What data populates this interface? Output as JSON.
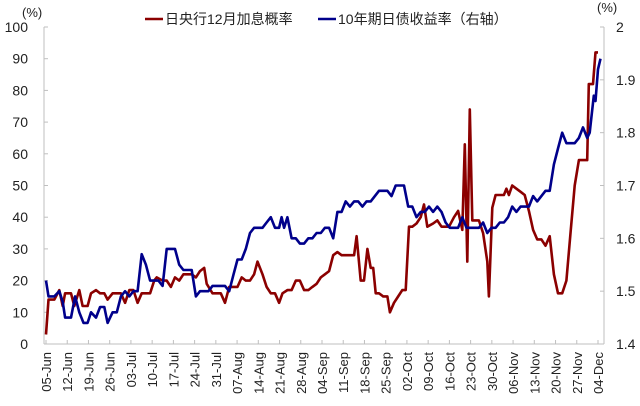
{
  "chart_data": {
    "type": "line",
    "title": "",
    "legend": [
      {
        "name": "日央行12月加息概率",
        "color": "#8B0000",
        "axis": "left"
      },
      {
        "name": "10年期日债收益率（右轴）",
        "color": "#00008B",
        "axis": "right"
      }
    ],
    "legend_position": "top",
    "left_axis": {
      "unit_label": "(%)",
      "ylim": [
        0,
        100
      ],
      "ticks": [
        0,
        10,
        20,
        30,
        40,
        50,
        60,
        70,
        80,
        90,
        100
      ]
    },
    "right_axis": {
      "unit_label": "(%)",
      "ylim": [
        1.4,
        2.0
      ],
      "ticks": [
        "1.4",
        "1.5",
        "1.6",
        "1.7",
        "1.8",
        "1.9",
        "2"
      ]
    },
    "x_tick_labels": [
      "05-Jun",
      "12-Jun",
      "19-Jun",
      "26-Jun",
      "03-Jul",
      "10-Jul",
      "17-Jul",
      "24-Jul",
      "31-Jul",
      "07-Aug",
      "14-Aug",
      "21-Aug",
      "28-Aug",
      "04-Sep",
      "11-Sep",
      "18-Sep",
      "25-Sep",
      "02-Oct",
      "09-Oct",
      "16-Oct",
      "23-Oct",
      "30-Oct",
      "06-Nov",
      "13-Nov",
      "20-Nov",
      "27-Nov",
      "04-Dec"
    ],
    "grid": false,
    "series": [
      {
        "name": "日央行12月加息概率",
        "axis": "left",
        "color": "#8B0000",
        "points": [
          [
            0,
            3
          ],
          [
            0.3,
            14
          ],
          [
            1,
            14
          ],
          [
            1.6,
            17
          ],
          [
            2,
            12
          ],
          [
            2.3,
            16
          ],
          [
            3,
            16
          ],
          [
            3.4,
            12
          ],
          [
            4,
            17
          ],
          [
            4.4,
            12
          ],
          [
            5,
            12
          ],
          [
            5.4,
            16
          ],
          [
            6,
            17
          ],
          [
            6.5,
            16
          ],
          [
            7,
            16
          ],
          [
            7.4,
            14
          ],
          [
            8,
            16
          ],
          [
            8.5,
            16
          ],
          [
            9,
            16
          ],
          [
            9.5,
            13
          ],
          [
            10,
            17
          ],
          [
            10.5,
            17
          ],
          [
            11,
            13
          ],
          [
            11.5,
            16
          ],
          [
            12,
            16
          ],
          [
            12.5,
            16
          ],
          [
            13,
            20
          ],
          [
            13.3,
            21
          ],
          [
            14,
            20
          ],
          [
            14.5,
            20
          ],
          [
            15,
            18
          ],
          [
            15.5,
            21
          ],
          [
            16,
            20
          ],
          [
            16.5,
            22
          ],
          [
            17,
            22
          ],
          [
            17.5,
            22
          ],
          [
            18,
            21
          ],
          [
            18.5,
            23
          ],
          [
            19,
            24
          ],
          [
            19.3,
            19
          ],
          [
            20,
            16
          ],
          [
            20.5,
            16
          ],
          [
            21,
            16
          ],
          [
            21.5,
            13
          ],
          [
            22,
            18
          ],
          [
            22.5,
            18
          ],
          [
            23,
            18
          ],
          [
            23.5,
            21
          ],
          [
            24,
            20
          ],
          [
            24.5,
            20
          ],
          [
            25,
            22
          ],
          [
            25.4,
            26
          ],
          [
            26,
            22
          ],
          [
            26.5,
            18
          ],
          [
            27,
            16
          ],
          [
            27.5,
            16
          ],
          [
            28,
            13
          ],
          [
            28.4,
            16
          ],
          [
            29,
            17
          ],
          [
            29.5,
            17
          ],
          [
            30,
            20
          ],
          [
            30.5,
            20
          ],
          [
            31,
            17
          ],
          [
            31.5,
            17
          ],
          [
            32,
            18
          ],
          [
            32.5,
            19
          ],
          [
            33,
            21
          ],
          [
            33.5,
            22
          ],
          [
            34,
            23
          ],
          [
            34.5,
            28
          ],
          [
            35,
            29
          ],
          [
            35.5,
            28
          ],
          [
            36,
            28
          ],
          [
            36.5,
            28
          ],
          [
            37,
            28
          ],
          [
            37.3,
            34
          ],
          [
            37.8,
            20
          ],
          [
            38.2,
            20
          ],
          [
            38.6,
            30
          ],
          [
            39,
            24
          ],
          [
            39.3,
            24
          ],
          [
            39.6,
            16
          ],
          [
            40,
            16
          ],
          [
            40.5,
            15
          ],
          [
            41,
            15
          ],
          [
            41.3,
            10
          ],
          [
            41.8,
            13
          ],
          [
            42.3,
            15
          ],
          [
            42.8,
            17
          ],
          [
            43.2,
            17
          ],
          [
            43.6,
            37
          ],
          [
            44,
            37
          ],
          [
            44.5,
            38
          ],
          [
            45,
            40
          ],
          [
            45.4,
            44
          ],
          [
            45.8,
            37
          ],
          [
            46.5,
            38
          ],
          [
            47,
            39
          ],
          [
            47.5,
            37
          ],
          [
            48,
            37
          ],
          [
            48.4,
            37
          ],
          [
            49,
            40
          ],
          [
            49.5,
            42
          ],
          [
            50,
            36
          ],
          [
            50.3,
            63
          ],
          [
            50.6,
            26
          ],
          [
            50.9,
            74
          ],
          [
            51.2,
            39
          ],
          [
            51.5,
            39
          ],
          [
            52,
            39
          ],
          [
            52.5,
            35
          ],
          [
            53,
            26
          ],
          [
            53.2,
            15
          ],
          [
            53.6,
            43
          ],
          [
            54,
            47
          ],
          [
            54.5,
            47
          ],
          [
            55,
            47
          ],
          [
            55.3,
            49
          ],
          [
            55.6,
            47
          ],
          [
            56,
            50
          ],
          [
            56.5,
            49
          ],
          [
            57,
            48
          ],
          [
            57.5,
            47
          ],
          [
            58,
            42
          ],
          [
            58.5,
            36
          ],
          [
            59,
            33
          ],
          [
            59.5,
            33
          ],
          [
            60,
            31
          ],
          [
            60.5,
            34
          ],
          [
            61,
            22
          ],
          [
            61.5,
            16
          ],
          [
            62,
            16
          ],
          [
            62.5,
            20
          ],
          [
            63,
            35
          ],
          [
            63.5,
            50
          ],
          [
            64,
            58
          ],
          [
            64.5,
            58
          ],
          [
            65,
            58
          ],
          [
            65.2,
            82
          ],
          [
            65.7,
            82
          ],
          [
            66,
            92
          ],
          [
            66.3,
            92
          ]
        ]
      },
      {
        "name": "10年期日债收益率（右轴）",
        "axis": "right",
        "color": "#00008B",
        "points": [
          [
            0,
            1.52
          ],
          [
            0.3,
            1.49
          ],
          [
            1,
            1.49
          ],
          [
            1.6,
            1.5
          ],
          [
            2,
            1.48
          ],
          [
            2.3,
            1.45
          ],
          [
            3,
            1.45
          ],
          [
            3.5,
            1.49
          ],
          [
            4,
            1.46
          ],
          [
            4.5,
            1.44
          ],
          [
            5,
            1.44
          ],
          [
            5.4,
            1.46
          ],
          [
            6,
            1.45
          ],
          [
            6.5,
            1.47
          ],
          [
            7,
            1.47
          ],
          [
            7.4,
            1.44
          ],
          [
            8,
            1.46
          ],
          [
            8.5,
            1.46
          ],
          [
            9,
            1.49
          ],
          [
            9.5,
            1.5
          ],
          [
            10,
            1.49
          ],
          [
            10.5,
            1.5
          ],
          [
            11,
            1.5
          ],
          [
            11.5,
            1.57
          ],
          [
            12,
            1.55
          ],
          [
            12.5,
            1.52
          ],
          [
            13,
            1.52
          ],
          [
            13.5,
            1.52
          ],
          [
            14,
            1.51
          ],
          [
            14.5,
            1.58
          ],
          [
            15,
            1.58
          ],
          [
            15.5,
            1.58
          ],
          [
            16,
            1.55
          ],
          [
            16.5,
            1.54
          ],
          [
            17,
            1.54
          ],
          [
            17.5,
            1.54
          ],
          [
            18,
            1.49
          ],
          [
            18.5,
            1.5
          ],
          [
            19,
            1.5
          ],
          [
            19.5,
            1.5
          ],
          [
            20,
            1.51
          ],
          [
            20.5,
            1.51
          ],
          [
            21,
            1.51
          ],
          [
            21.5,
            1.51
          ],
          [
            22,
            1.5
          ],
          [
            22.5,
            1.53
          ],
          [
            23,
            1.56
          ],
          [
            23.5,
            1.56
          ],
          [
            24,
            1.58
          ],
          [
            24.5,
            1.61
          ],
          [
            25,
            1.62
          ],
          [
            25.5,
            1.62
          ],
          [
            26,
            1.62
          ],
          [
            26.5,
            1.63
          ],
          [
            27,
            1.64
          ],
          [
            27.5,
            1.62
          ],
          [
            28,
            1.62
          ],
          [
            28.3,
            1.64
          ],
          [
            28.6,
            1.62
          ],
          [
            29,
            1.64
          ],
          [
            29.5,
            1.6
          ],
          [
            30,
            1.6
          ],
          [
            30.5,
            1.59
          ],
          [
            31,
            1.59
          ],
          [
            31.5,
            1.6
          ],
          [
            32,
            1.6
          ],
          [
            32.5,
            1.61
          ],
          [
            33,
            1.61
          ],
          [
            33.5,
            1.62
          ],
          [
            34,
            1.62
          ],
          [
            34.5,
            1.6
          ],
          [
            35,
            1.65
          ],
          [
            35.5,
            1.65
          ],
          [
            36,
            1.67
          ],
          [
            36.5,
            1.66
          ],
          [
            37,
            1.67
          ],
          [
            37.5,
            1.67
          ],
          [
            38,
            1.66
          ],
          [
            38.5,
            1.67
          ],
          [
            39,
            1.67
          ],
          [
            39.5,
            1.68
          ],
          [
            40,
            1.69
          ],
          [
            40.5,
            1.69
          ],
          [
            41,
            1.69
          ],
          [
            41.5,
            1.68
          ],
          [
            42,
            1.7
          ],
          [
            42.5,
            1.7
          ],
          [
            43,
            1.7
          ],
          [
            43.5,
            1.66
          ],
          [
            44,
            1.66
          ],
          [
            44.5,
            1.64
          ],
          [
            45,
            1.65
          ],
          [
            45.5,
            1.65
          ],
          [
            46,
            1.66
          ],
          [
            46.5,
            1.65
          ],
          [
            47,
            1.66
          ],
          [
            47.5,
            1.65
          ],
          [
            48,
            1.63
          ],
          [
            48.5,
            1.62
          ],
          [
            49,
            1.62
          ],
          [
            49.5,
            1.62
          ],
          [
            50,
            1.64
          ],
          [
            50.5,
            1.62
          ],
          [
            51,
            1.62
          ],
          [
            51.5,
            1.62
          ],
          [
            52,
            1.62
          ],
          [
            52.5,
            1.63
          ],
          [
            53,
            1.61
          ],
          [
            53.5,
            1.62
          ],
          [
            54,
            1.62
          ],
          [
            54.5,
            1.63
          ],
          [
            55,
            1.63
          ],
          [
            55.5,
            1.64
          ],
          [
            56,
            1.66
          ],
          [
            56.5,
            1.65
          ],
          [
            57,
            1.66
          ],
          [
            57.5,
            1.66
          ],
          [
            58,
            1.66
          ],
          [
            58.5,
            1.68
          ],
          [
            59,
            1.67
          ],
          [
            59.5,
            1.68
          ],
          [
            60,
            1.69
          ],
          [
            60.5,
            1.69
          ],
          [
            61,
            1.74
          ],
          [
            61.5,
            1.77
          ],
          [
            62,
            1.8
          ],
          [
            62.5,
            1.78
          ],
          [
            63,
            1.78
          ],
          [
            63.5,
            1.78
          ],
          [
            64,
            1.79
          ],
          [
            64.5,
            1.81
          ],
          [
            65,
            1.79
          ],
          [
            65.3,
            1.8
          ],
          [
            65.8,
            1.87
          ],
          [
            66,
            1.86
          ],
          [
            66.3,
            1.92
          ],
          [
            66.6,
            1.94
          ]
        ]
      }
    ]
  }
}
